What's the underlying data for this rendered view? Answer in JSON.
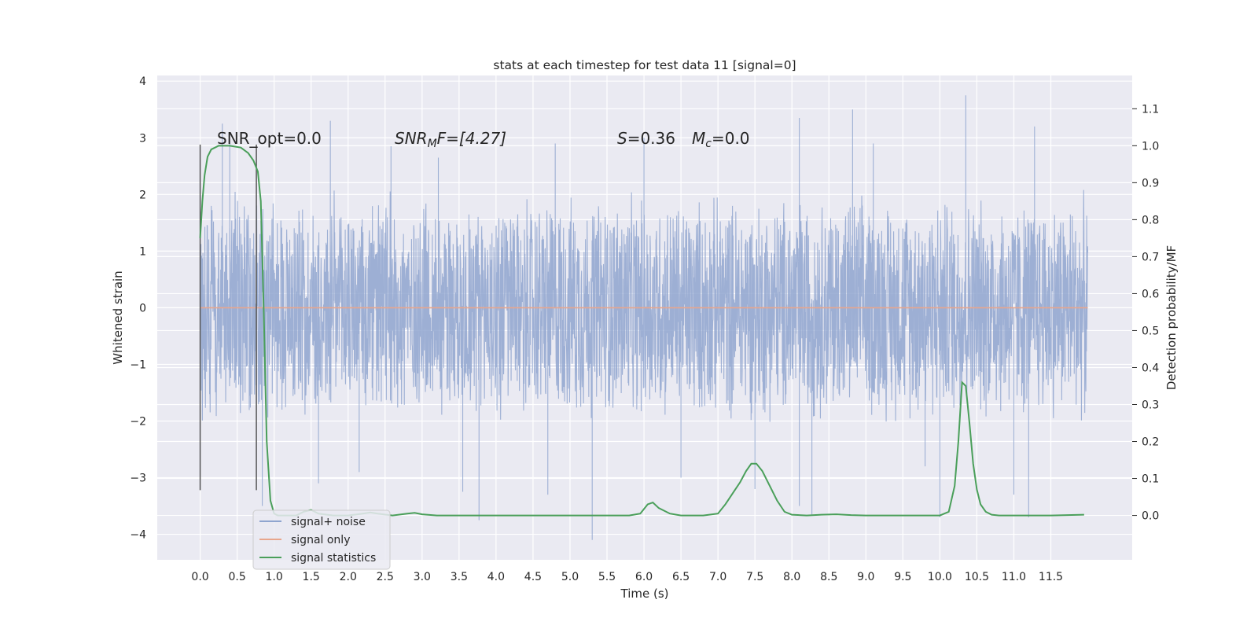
{
  "chart_data": {
    "type": "line",
    "title": "stats at each timestep for test data 11 [signal=0]",
    "xlabel": "Time (s)",
    "ylabel": "Whitened strain",
    "y2label": "Detection probability/MF",
    "xlim": [
      -0.58,
      12.6
    ],
    "ylim": [
      -4.45,
      4.1
    ],
    "y2lim": [
      -0.12,
      1.19
    ],
    "grid": true,
    "legend_position": "lower-left",
    "x_ticks": [
      "0.0",
      "0.5",
      "1.0",
      "1.5",
      "2.0",
      "2.5",
      "3.0",
      "3.5",
      "4.0",
      "4.5",
      "5.0",
      "5.5",
      "6.0",
      "6.5",
      "7.0",
      "7.5",
      "8.0",
      "8.5",
      "9.0",
      "9.5",
      "10.0",
      "10.5",
      "11.0",
      "11.5"
    ],
    "y_ticks": [
      "4",
      "3",
      "2",
      "1",
      "0",
      "−1",
      "−2",
      "−3",
      "−4"
    ],
    "y2_ticks": [
      "0.0",
      "0.1",
      "0.2",
      "0.3",
      "0.4",
      "0.5",
      "0.6",
      "0.7",
      "0.8",
      "0.9",
      "1.0",
      "1.1"
    ],
    "annotations": {
      "snr_opt": "SNR_opt=0.0",
      "snr_mf_name": "SNR",
      "snr_mf_sub": "M",
      "snr_mf_rest": "F=[4.27]",
      "s_name": "S",
      "s_val": "=0.36",
      "mc_name": "M",
      "mc_sub": "c",
      "mc_val": "=0.0"
    },
    "vlines_x": [
      0.0,
      0.76
    ],
    "series": [
      {
        "name": "signal+ noise",
        "color": "#8fa5cf",
        "envelope": {
          "x_range": [
            0.0,
            12.0
          ],
          "typical_amplitude": 2.1,
          "spike_max": [
            [
              0.3,
              3.25
            ],
            [
              1.76,
              3.3
            ],
            [
              6.0,
              3.0
            ],
            [
              8.1,
              3.35
            ],
            [
              8.82,
              3.5
            ],
            [
              10.35,
              3.75
            ],
            [
              11.28,
              3.2
            ],
            [
              0.4,
              2.95
            ],
            [
              4.8,
              2.9
            ],
            [
              3.22,
              2.65
            ],
            [
              2.58,
              2.85
            ],
            [
              9.1,
              2.9
            ]
          ],
          "spike_min": [
            [
              0.84,
              -3.5
            ],
            [
              3.77,
              -3.75
            ],
            [
              5.3,
              -4.1
            ],
            [
              10.0,
              -3.7
            ],
            [
              11.2,
              -3.7
            ],
            [
              8.27,
              -3.65
            ],
            [
              8.1,
              -3.5
            ],
            [
              7.5,
              -3.2
            ],
            [
              4.7,
              -3.3
            ],
            [
              3.55,
              -3.25
            ],
            [
              1.6,
              -3.1
            ],
            [
              2.15,
              -2.9
            ],
            [
              6.5,
              -3.0
            ],
            [
              9.8,
              -2.8
            ],
            [
              11.0,
              -3.3
            ]
          ]
        }
      },
      {
        "name": "signal only",
        "color": "#e8a68c",
        "x": [
          0.0,
          12.0
        ],
        "y": [
          0.0,
          0.0
        ]
      },
      {
        "name": "signal statistics",
        "color": "#4a9f5a",
        "axis": "right",
        "x": [
          0.0,
          0.03,
          0.06,
          0.1,
          0.15,
          0.25,
          0.4,
          0.55,
          0.65,
          0.72,
          0.78,
          0.82,
          0.86,
          0.9,
          0.95,
          1.0,
          1.05,
          1.15,
          1.3,
          1.4,
          1.5,
          1.6,
          1.8,
          2.0,
          2.2,
          2.3,
          2.4,
          2.6,
          2.8,
          2.9,
          3.0,
          3.2,
          3.5,
          3.8,
          4.0,
          5.0,
          5.8,
          5.95,
          6.05,
          6.12,
          6.2,
          6.35,
          6.5,
          6.8,
          7.0,
          7.1,
          7.2,
          7.3,
          7.38,
          7.45,
          7.52,
          7.6,
          7.7,
          7.8,
          7.9,
          8.0,
          8.2,
          8.4,
          8.6,
          8.8,
          9.0,
          9.5,
          10.0,
          10.12,
          10.2,
          10.25,
          10.3,
          10.35,
          10.4,
          10.45,
          10.5,
          10.55,
          10.62,
          10.7,
          10.8,
          11.0,
          11.5,
          11.95
        ],
        "y": [
          0.75,
          0.85,
          0.92,
          0.97,
          0.99,
          1.0,
          1.0,
          0.995,
          0.98,
          0.96,
          0.93,
          0.85,
          0.55,
          0.2,
          0.04,
          0.005,
          0.0,
          0.0,
          0.0,
          0.01,
          0.015,
          0.005,
          0.0,
          0.0,
          0.005,
          0.008,
          0.005,
          0.0,
          0.005,
          0.007,
          0.003,
          0.0,
          0.0,
          0.0,
          0.0,
          0.0,
          0.0,
          0.005,
          0.03,
          0.035,
          0.02,
          0.005,
          0.0,
          0.0,
          0.005,
          0.03,
          0.06,
          0.09,
          0.12,
          0.14,
          0.14,
          0.12,
          0.08,
          0.04,
          0.01,
          0.002,
          0.0,
          0.002,
          0.003,
          0.001,
          0.0,
          0.0,
          0.0,
          0.01,
          0.08,
          0.2,
          0.36,
          0.35,
          0.25,
          0.14,
          0.07,
          0.03,
          0.01,
          0.002,
          0.0,
          0.0,
          0.0,
          0.002
        ]
      }
    ]
  }
}
